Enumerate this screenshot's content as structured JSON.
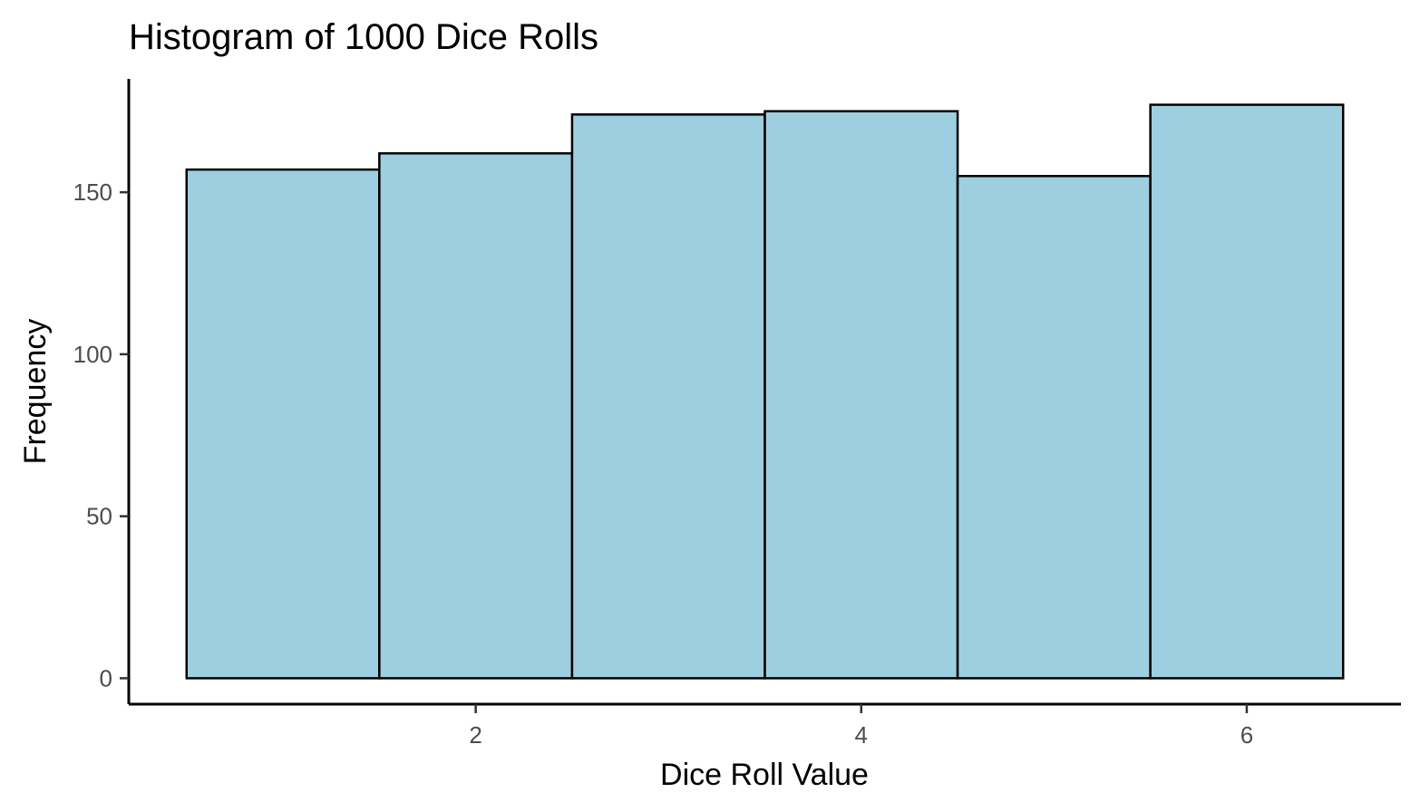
{
  "chart_data": {
    "type": "bar",
    "title": "Histogram of 1000 Dice Rolls",
    "xlabel": "Dice Roll Value",
    "ylabel": "Frequency",
    "categories": [
      1,
      2,
      3,
      4,
      5,
      6
    ],
    "values": [
      157,
      162,
      174,
      175,
      155,
      177
    ],
    "bin_width": 1,
    "xlim": [
      0.2,
      6.8
    ],
    "ylim": [
      -8,
      185
    ],
    "x_ticks": [
      2,
      4,
      6
    ],
    "y_ticks": [
      0,
      50,
      100,
      150
    ],
    "grid": false,
    "legend": "none",
    "colors": {
      "fill": "#9ecfe0",
      "stroke": "#000000"
    }
  }
}
